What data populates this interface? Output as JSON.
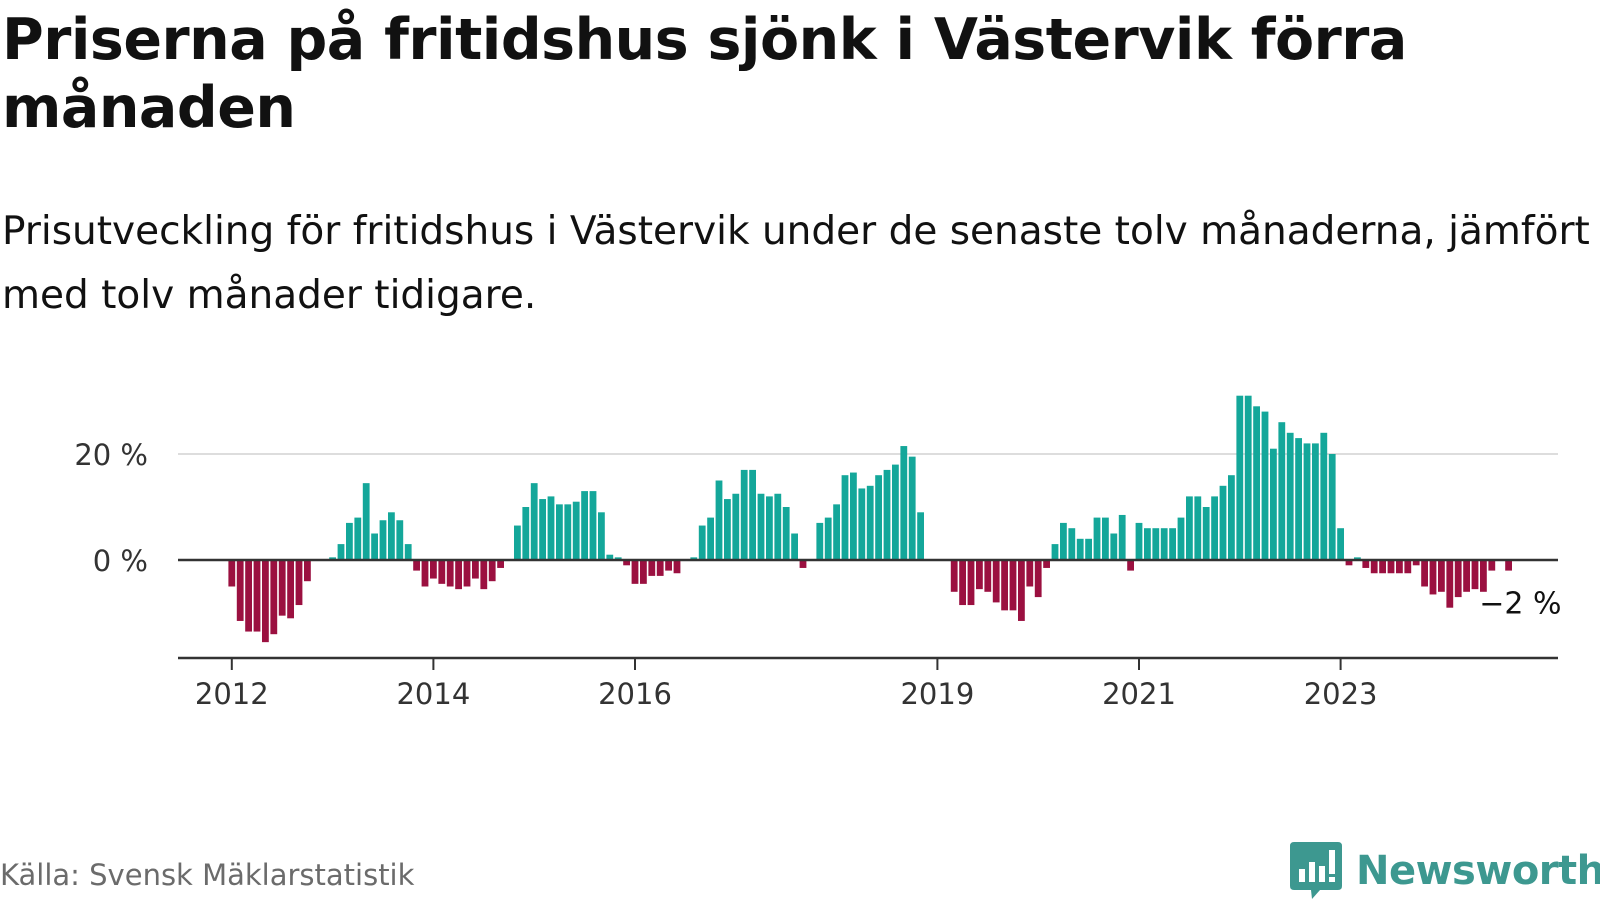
{
  "header": {
    "title": "Priserna på fritidshus sjönk i Västervik förra månaden",
    "subtitle": "Prisutveckling för fritidshus i Västervik under de senaste tolv månaderna, jämfört med tolv månader tidigare."
  },
  "footer": {
    "source": "Källa: Svensk Mäklarstatistik",
    "brand": "Newsworthy"
  },
  "colors": {
    "positive": "#14a79a",
    "negative": "#9b1040",
    "brand": "#3d9890",
    "gridline": "#dddddd",
    "axis": "#333333"
  },
  "chart_data": {
    "type": "bar",
    "title": "Priserna på fritidshus sjönk i Västervik förra månaden",
    "xlabel": "",
    "ylabel": "",
    "ylim": [
      -18,
      34
    ],
    "yticks": [
      0,
      20
    ],
    "ytick_labels": [
      "0 %",
      "20 %"
    ],
    "grid": true,
    "start": "2011-07",
    "x_ticks": [
      {
        "label": "2012",
        "index": 6
      },
      {
        "label": "2014",
        "index": 30
      },
      {
        "label": "2016",
        "index": 54
      },
      {
        "label": "2019",
        "index": 90
      },
      {
        "label": "2021",
        "index": 114
      },
      {
        "label": "2023",
        "index": 138
      }
    ],
    "end_label": "−2 %",
    "values": [
      0,
      0,
      0,
      0,
      0,
      0,
      -5,
      -11.5,
      -13.5,
      -13.5,
      -15.5,
      -14,
      -10.5,
      -11,
      -8.5,
      -4,
      0,
      0,
      0.5,
      3,
      7,
      8,
      14.5,
      5,
      7.5,
      9,
      7.5,
      3,
      -2,
      -5,
      -3.5,
      -4.5,
      -5,
      -5.5,
      -5,
      -3.5,
      -5.5,
      -4,
      -1.5,
      0,
      6.5,
      10,
      14.5,
      11.5,
      12,
      10.5,
      10.5,
      11,
      13,
      13,
      9,
      1,
      0.5,
      -1,
      -4.5,
      -4.5,
      -3,
      -3,
      -2,
      -2.5,
      0,
      0.5,
      6.5,
      8,
      15,
      11.5,
      12.5,
      17,
      17,
      12.5,
      12,
      12.5,
      10,
      5,
      -1.5,
      0,
      7,
      8,
      10.5,
      16,
      16.5,
      13.5,
      14,
      16,
      17,
      18,
      21.5,
      19.5,
      9,
      0,
      0,
      0,
      -6,
      -8.5,
      -8.5,
      -5.5,
      -6,
      -8,
      -9.5,
      -9.5,
      -11.5,
      -5,
      -7,
      -1.5,
      3,
      7,
      6,
      4,
      4,
      8,
      8,
      5,
      8.5,
      -2,
      7,
      6,
      6,
      6,
      6,
      8,
      12,
      12,
      10,
      12,
      14,
      16,
      31,
      31,
      29,
      28,
      21,
      26,
      24,
      23,
      22,
      22,
      24,
      20,
      6,
      -1,
      0.5,
      -1.5,
      -2.5,
      -2.5,
      -2.5,
      -2.5,
      -2.5,
      -1,
      -5,
      -6.5,
      -6,
      -9,
      -7,
      -6,
      -5.5,
      -6,
      -2,
      0,
      -2
    ]
  }
}
